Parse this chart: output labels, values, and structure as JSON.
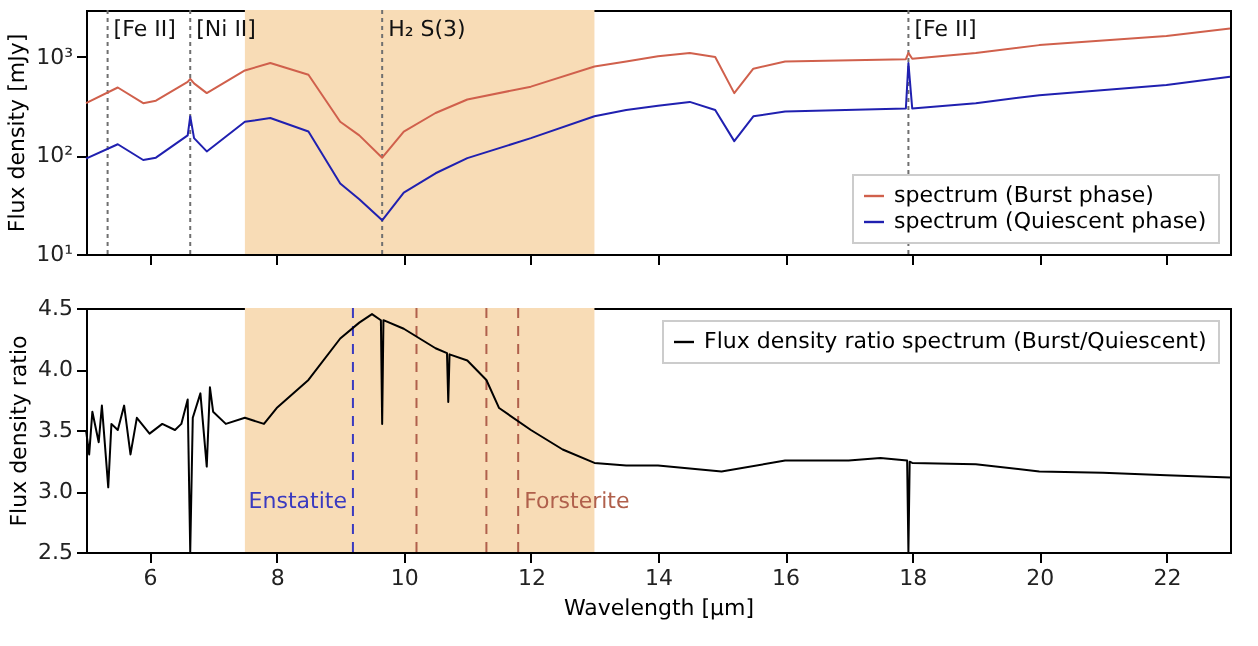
{
  "chart_data": [
    {
      "type": "line",
      "ylabel": "Flux density [mJy]",
      "log": "y",
      "xlim": [
        5,
        23
      ],
      "xticks": [
        6,
        8,
        10,
        12,
        14,
        16,
        18,
        20,
        22
      ],
      "ylim": [
        10,
        3000
      ],
      "yticks": [
        {
          "value": 10,
          "label": "10¹"
        },
        {
          "value": 100,
          "label": "10²"
        },
        {
          "value": 1000,
          "label": "10³"
        }
      ],
      "tick_labels": "y",
      "legend": "bottom right",
      "x": [
        5.0,
        5.5,
        5.9,
        6.1,
        6.6,
        6.64,
        6.7,
        6.9,
        7.5,
        7.9,
        8.5,
        9.0,
        9.3,
        9.66,
        10.0,
        10.5,
        11,
        12,
        13,
        13.5,
        14,
        14.5,
        14.9,
        15.2,
        15.5,
        16,
        17.9,
        17.94,
        18,
        19,
        20,
        22,
        23
      ],
      "series": [
        {
          "name": "spectrum (Burst phase)",
          "color": "#d0604c",
          "values": [
            340,
            490,
            340,
            360,
            560,
            600,
            540,
            430,
            730,
            870,
            660,
            220,
            160,
            95,
            175,
            270,
            370,
            500,
            800,
            900,
            1020,
            1100,
            1000,
            430,
            760,
            900,
            950,
            1100,
            960,
            1100,
            1320,
            1630,
            1950
          ]
        },
        {
          "name": "spectrum (Quiescent phase)",
          "color": "#2020b0",
          "values": [
            93,
            130,
            90,
            95,
            160,
            250,
            150,
            110,
            220,
            240,
            175,
            52,
            36,
            22,
            42,
            66,
            94,
            150,
            250,
            290,
            320,
            350,
            290,
            140,
            250,
            280,
            300,
            870,
            300,
            340,
            410,
            520,
            630
          ]
        }
      ],
      "bands": [
        {
          "axis": "x",
          "from": 7.5,
          "to": 13.0,
          "color": "#f8dcb6"
        }
      ],
      "ref_lines": [
        {
          "axis": "x",
          "value": 5.34,
          "label": "[Fe II]",
          "color": "#707070",
          "line_style": "dotted"
        },
        {
          "axis": "x",
          "value": 6.64,
          "label": "[Ni II]",
          "color": "#707070",
          "line_style": "dotted"
        },
        {
          "axis": "x",
          "value": 9.66,
          "label": "H₂ S(3)",
          "color": "#707070",
          "line_style": "dotted"
        },
        {
          "axis": "x",
          "value": 17.94,
          "label": "[Fe II]",
          "color": "#707070",
          "line_style": "dotted"
        }
      ]
    },
    {
      "type": "line",
      "xlabel": "Wavelength [µm]",
      "ylabel": "Flux density ratio",
      "xlim": [
        5,
        23
      ],
      "xticks": [
        6,
        8,
        10,
        12,
        14,
        16,
        18,
        20,
        22
      ],
      "ylim": [
        2.5,
        4.5
      ],
      "yticks": [
        {
          "value": 2.5,
          "label": "2.5"
        },
        {
          "value": 3,
          "label": "3.0"
        },
        {
          "value": 3.5,
          "label": "3.5"
        },
        {
          "value": 4,
          "label": "4.0"
        },
        {
          "value": 4.5,
          "label": "4.5"
        }
      ],
      "legend": "top right",
      "x": [
        5.0,
        5.05,
        5.1,
        5.2,
        5.25,
        5.35,
        5.4,
        5.5,
        5.6,
        5.7,
        5.8,
        6.0,
        6.2,
        6.4,
        6.5,
        6.6,
        6.64,
        6.68,
        6.8,
        6.9,
        6.95,
        7.0,
        7.2,
        7.5,
        7.8,
        8.0,
        8.5,
        9.0,
        9.3,
        9.5,
        9.64,
        9.66,
        9.68,
        10.0,
        10.5,
        10.68,
        10.7,
        10.72,
        11.0,
        11.3,
        11.5,
        12.0,
        12.5,
        13.0,
        13.5,
        14.0,
        15.0,
        16.0,
        17.0,
        17.5,
        17.92,
        17.94,
        17.96,
        18.0,
        19.0,
        20.0,
        21.0,
        22.0,
        23.0
      ],
      "series": [
        {
          "name": "Flux density ratio spectrum (Burst/Quiescent)",
          "color": "#000000",
          "values": [
            3.5,
            3.3,
            3.65,
            3.4,
            3.7,
            3.03,
            3.55,
            3.5,
            3.7,
            3.3,
            3.6,
            3.47,
            3.55,
            3.5,
            3.55,
            3.75,
            2.5,
            3.6,
            3.8,
            3.2,
            3.85,
            3.65,
            3.55,
            3.6,
            3.55,
            3.68,
            3.91,
            4.25,
            4.38,
            4.45,
            4.4,
            3.55,
            4.4,
            4.33,
            4.17,
            4.13,
            3.73,
            4.12,
            4.07,
            3.91,
            3.68,
            3.5,
            3.34,
            3.23,
            3.21,
            3.21,
            3.16,
            3.25,
            3.25,
            3.27,
            3.25,
            2.5,
            3.24,
            3.23,
            3.22,
            3.16,
            3.15,
            3.13,
            3.11
          ]
        }
      ],
      "bands": [
        {
          "axis": "x",
          "from": 7.5,
          "to": 13.0,
          "color": "#f8dcb6"
        }
      ],
      "ref_lines": [
        {
          "axis": "x",
          "value": 9.2,
          "label": "Enstatite",
          "color": "#3a3ac0",
          "line_style": "dashed"
        },
        {
          "axis": "x",
          "value": 10.2,
          "color": "#b0604c",
          "line_style": "dashed"
        },
        {
          "axis": "x",
          "value": 11.3,
          "color": "#b0604c",
          "line_style": "dashed"
        },
        {
          "axis": "x",
          "value": 11.8,
          "label": "Forsterite",
          "color": "#b0604c",
          "line_style": "dashed"
        }
      ]
    }
  ]
}
